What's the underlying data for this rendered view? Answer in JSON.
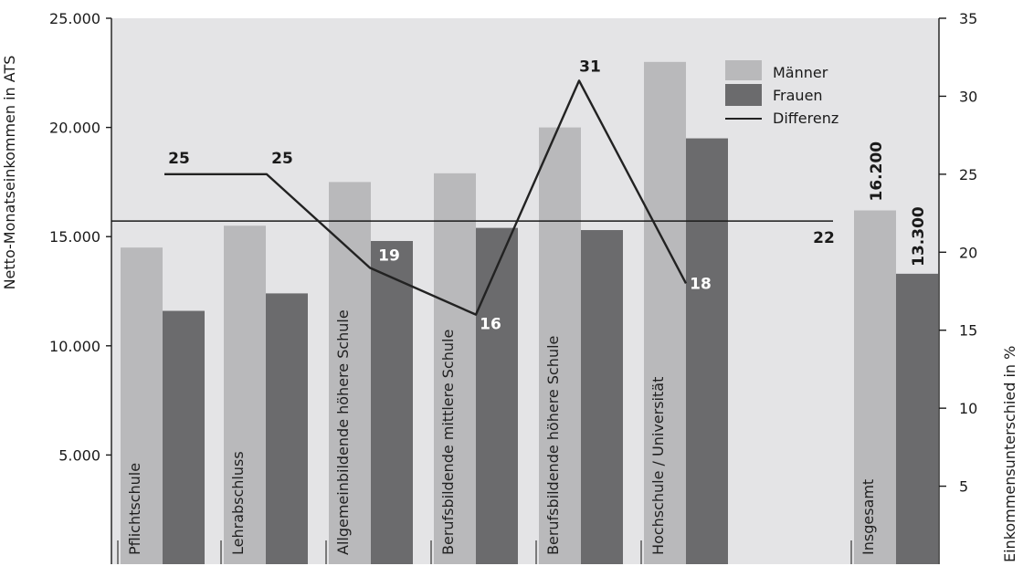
{
  "chart_data": {
    "type": "bar",
    "left_axis": {
      "label": "Netto-Monatseinkommen in ATS",
      "ylim": [
        0,
        25000
      ],
      "ticks": [
        "5.000",
        "10.000",
        "15.000",
        "20.000",
        "25.000"
      ],
      "tick_values": [
        5000,
        10000,
        15000,
        20000,
        25000
      ]
    },
    "right_axis": {
      "label": "Einkommensunterschied in %",
      "ylim": [
        0,
        35
      ],
      "ticks": [
        "5",
        "10",
        "15",
        "20",
        "25",
        "30",
        "35"
      ],
      "tick_values": [
        5,
        10,
        15,
        20,
        25,
        30,
        35
      ]
    },
    "categories": [
      "Pflichtschule",
      "Lehrabschluss",
      "Allgemeinbildende höhere Schule",
      "Berufsbildende mittlere Schule",
      "Berufsbildende höhere Schule",
      "Hochschule / Universität",
      "Insgesamt"
    ],
    "series": [
      {
        "name": "Männer",
        "axis": "left",
        "values": [
          14500,
          15500,
          17500,
          17900,
          20000,
          23000,
          16200
        ]
      },
      {
        "name": "Frauen",
        "axis": "left",
        "values": [
          11600,
          12400,
          14800,
          15400,
          15300,
          19500,
          13300
        ]
      },
      {
        "name": "Differenz",
        "axis": "right",
        "type": "line",
        "values": [
          25,
          25,
          19,
          16,
          31,
          18,
          null
        ]
      }
    ],
    "difference_labels": [
      "25",
      "25",
      "19",
      "16",
      "31",
      "18"
    ],
    "reference_line": {
      "value": 22,
      "label": "22"
    },
    "total_labels": {
      "maenner": "16.200",
      "frauen": "13.300"
    },
    "legend": {
      "placement": "top-right",
      "items": [
        {
          "label": "Männer",
          "color": "#b9b9bb",
          "kind": "box"
        },
        {
          "label": "Frauen",
          "color": "#6b6b6d",
          "kind": "box"
        },
        {
          "label": "Differenz",
          "color": "#222222",
          "kind": "line"
        }
      ]
    },
    "colors": {
      "maenner": "#b9b9bb",
      "frauen": "#6b6b6d",
      "line": "#222222",
      "plot_bg": "#e4e4e6"
    },
    "grid": false
  }
}
